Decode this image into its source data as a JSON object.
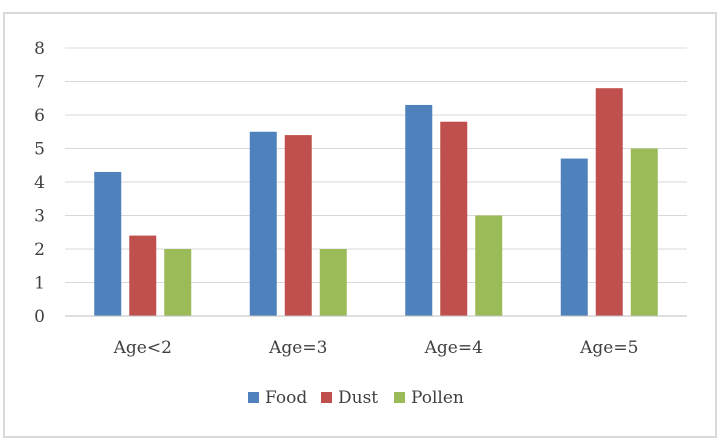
{
  "chart_data": {
    "type": "bar",
    "title": "",
    "xlabel": "",
    "ylabel": "",
    "categories": [
      "Age<2",
      "Age=3",
      "Age=4",
      "Age=5"
    ],
    "series": [
      {
        "name": "Food",
        "color": "#4f81bd",
        "values": [
          4.3,
          5.5,
          6.3,
          4.7
        ]
      },
      {
        "name": "Dust",
        "color": "#c0504d",
        "values": [
          2.4,
          5.4,
          5.8,
          6.8
        ]
      },
      {
        "name": "Pollen",
        "color": "#9bbb59",
        "values": [
          2.0,
          2.0,
          3.0,
          5.0
        ]
      }
    ],
    "ylim": [
      0,
      8
    ],
    "yticks": [
      "0",
      "1",
      "2",
      "3",
      "4",
      "5",
      "6",
      "7",
      "8"
    ],
    "grid": true,
    "legend_position": "bottom"
  }
}
